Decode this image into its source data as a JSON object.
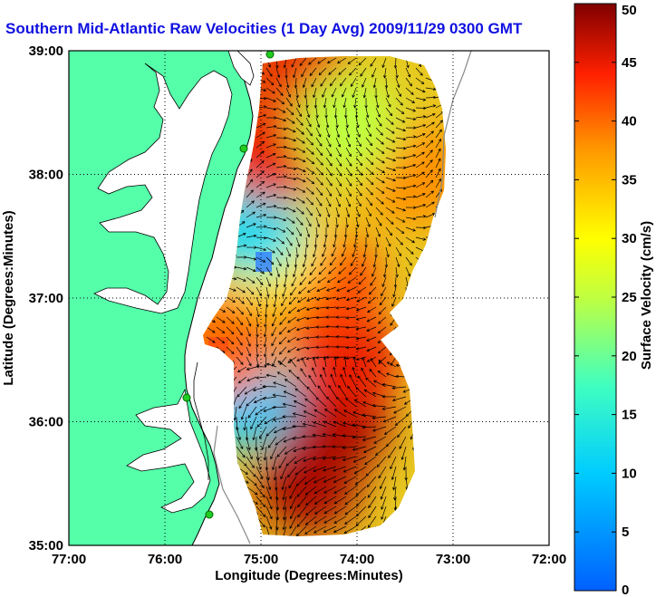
{
  "title": "Southern Mid-Atlantic Raw Velocities (1 Day Avg) 2009/11/29 0300 GMT",
  "map": {
    "x_label": "Longitude (Degrees:Minutes)",
    "y_label": "Latitude (Degrees:Minutes)",
    "x_ticks": [
      "77:00",
      "76:00",
      "75:00",
      "74:00",
      "73:00",
      "72:00"
    ],
    "y_ticks": [
      "39:00",
      "38:00",
      "37:00",
      "36:00",
      "35:00"
    ],
    "lon_range": [
      -77,
      -72
    ],
    "lat_range": [
      35,
      39
    ],
    "grid": "dotted",
    "land_color": "#55ffaa",
    "station_color": "#22cc22"
  },
  "colorbar": {
    "label": "Surface Velocity (cm/s)",
    "ticks": [
      "0",
      "5",
      "10",
      "15",
      "20",
      "25",
      "30",
      "35",
      "40",
      "45",
      "50"
    ],
    "range": [
      0,
      50
    ],
    "colormap": "jet"
  },
  "chart_data": {
    "type": "heatmap",
    "title": "Southern Mid-Atlantic Raw Velocities (1 Day Avg) 2009/11/29 0300 GMT",
    "xlabel": "Longitude (Degrees:Minutes)",
    "ylabel": "Latitude (Degrees:Minutes)",
    "xlim": [
      -77,
      -72
    ],
    "ylim": [
      35,
      39
    ],
    "value_label": "Surface Velocity (cm/s)",
    "value_range": [
      0,
      50
    ],
    "speed_regions": [
      {
        "lon": -74.5,
        "lat": 35.5,
        "speed": 48
      },
      {
        "lon": -74.2,
        "lat": 36.0,
        "speed": 48
      },
      {
        "lon": -74.1,
        "lat": 36.5,
        "speed": 45
      },
      {
        "lon": -74.3,
        "lat": 37.1,
        "speed": 42
      },
      {
        "lon": -74.9,
        "lat": 37.4,
        "speed": 30
      },
      {
        "lon": -75.1,
        "lat": 37.6,
        "speed": 12
      },
      {
        "lon": -75.2,
        "lat": 36.2,
        "speed": 10
      },
      {
        "lon": -74.6,
        "lat": 38.8,
        "speed": 45
      },
      {
        "lon": -74.9,
        "lat": 38.2,
        "speed": 45
      },
      {
        "lon": -73.4,
        "lat": 38.0,
        "speed": 38
      },
      {
        "lon": -74.1,
        "lat": 38.4,
        "speed": 25
      },
      {
        "lon": -75.4,
        "lat": 36.6,
        "speed": 40
      }
    ]
  }
}
